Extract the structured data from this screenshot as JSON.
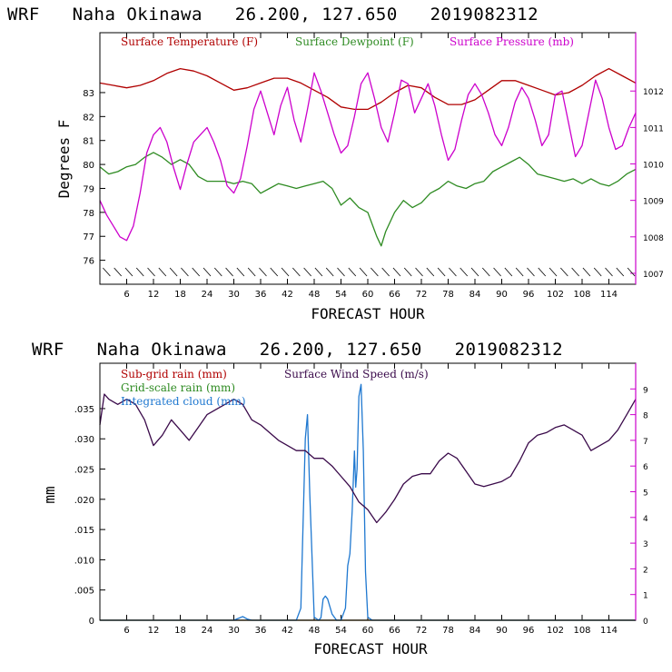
{
  "chart_data": [
    {
      "type": "line",
      "title": "WRF   Naha Okinawa   26.200, 127.650   2019082312",
      "xlabel": "FORECAST HOUR",
      "ylabel": "Degrees F",
      "xlim": [
        0,
        120
      ],
      "ylim": [
        75,
        85.5
      ],
      "ylim_right": [
        1006.7,
        1013.6
      ],
      "x_ticks": [
        6,
        12,
        18,
        24,
        30,
        36,
        42,
        48,
        54,
        60,
        66,
        72,
        78,
        84,
        90,
        96,
        102,
        108,
        114
      ],
      "x_tick_labels": [
        "6",
        "12",
        "18",
        "24",
        "30",
        "36",
        "42",
        "48",
        "54",
        "60",
        "66",
        "72",
        "78",
        "84",
        "90",
        "96",
        "102",
        "108",
        "114"
      ],
      "y_ticks": [
        76,
        77,
        78,
        79,
        80,
        81,
        82,
        83
      ],
      "y_tick_labels": [
        "76",
        "77",
        "78",
        "79",
        "80",
        "81",
        "82",
        "83"
      ],
      "y_right_ticks": [
        1007,
        1008,
        1009,
        1010,
        1011,
        1012
      ],
      "y_right_tick_labels": [
        "1007",
        "1008",
        "1009",
        "1010",
        "1011",
        "1012"
      ],
      "colors": {
        "temperature": "#b00000",
        "dewpoint": "#2e8b22",
        "pressure": "#cc00cc",
        "frame_right": "#cc00cc"
      },
      "wind_barbs": "present along bottom",
      "series": [
        {
          "name": "Surface Temperature (F)",
          "axis": "left",
          "x": [
            0,
            3,
            6,
            9,
            12,
            15,
            18,
            21,
            24,
            27,
            30,
            33,
            36,
            39,
            42,
            45,
            48,
            51,
            54,
            57,
            60,
            63,
            66,
            69,
            72,
            75,
            78,
            81,
            84,
            87,
            90,
            93,
            96,
            99,
            102,
            105,
            108,
            111,
            114,
            117,
            120
          ],
          "values": [
            83.4,
            83.3,
            83.2,
            83.3,
            83.5,
            83.8,
            84.0,
            83.9,
            83.7,
            83.4,
            83.1,
            83.2,
            83.4,
            83.6,
            83.6,
            83.4,
            83.1,
            82.8,
            82.4,
            82.3,
            82.3,
            82.6,
            83.0,
            83.3,
            83.2,
            82.8,
            82.5,
            82.5,
            82.7,
            83.1,
            83.5,
            83.5,
            83.3,
            83.1,
            82.9,
            83.0,
            83.3,
            83.7,
            84.0,
            83.7,
            83.4
          ]
        },
        {
          "name": "Surface Dewpoint (F)",
          "axis": "left",
          "x": [
            0,
            2,
            4,
            6,
            8,
            10,
            12,
            14,
            16,
            18,
            20,
            22,
            24,
            26,
            28,
            30,
            32,
            34,
            36,
            38,
            40,
            42,
            44,
            46,
            48,
            50,
            52,
            54,
            56,
            58,
            60,
            62,
            63,
            64,
            66,
            68,
            70,
            72,
            74,
            76,
            78,
            80,
            82,
            84,
            86,
            88,
            90,
            92,
            94,
            96,
            98,
            100,
            102,
            104,
            106,
            108,
            110,
            112,
            114,
            116,
            118,
            120
          ],
          "values": [
            79.9,
            79.6,
            79.7,
            79.9,
            80.0,
            80.3,
            80.5,
            80.3,
            80.0,
            80.2,
            80.0,
            79.5,
            79.3,
            79.3,
            79.3,
            79.2,
            79.3,
            79.2,
            78.8,
            79.0,
            79.2,
            79.1,
            79.0,
            79.1,
            79.2,
            79.3,
            79.0,
            78.3,
            78.6,
            78.2,
            78.0,
            77.0,
            76.6,
            77.2,
            78.0,
            78.5,
            78.2,
            78.4,
            78.8,
            79.0,
            79.3,
            79.1,
            79.0,
            79.2,
            79.3,
            79.7,
            79.9,
            80.1,
            80.3,
            80.0,
            79.6,
            79.5,
            79.4,
            79.3,
            79.4,
            79.2,
            79.4,
            79.2,
            79.1,
            79.3,
            79.6,
            79.8
          ]
        },
        {
          "name": "Surface Pressure (mb)",
          "axis": "right",
          "x": [
            0,
            1.5,
            3,
            4.5,
            6,
            7.5,
            9,
            10.5,
            12,
            13.5,
            15,
            16.5,
            18,
            19.5,
            21,
            22.5,
            24,
            25.5,
            27,
            28.5,
            30,
            31.5,
            33,
            34.5,
            36,
            37.5,
            39,
            40.5,
            42,
            43.5,
            45,
            46.5,
            48,
            49.5,
            51,
            52.5,
            54,
            55.5,
            57,
            58.5,
            60,
            61.5,
            63,
            64.5,
            66,
            67.5,
            69,
            70.5,
            72,
            73.5,
            75,
            76.5,
            78,
            79.5,
            81,
            82.5,
            84,
            85.5,
            87,
            88.5,
            90,
            91.5,
            93,
            94.5,
            96,
            97.5,
            99,
            100.5,
            102,
            103.5,
            105,
            106.5,
            108,
            109.5,
            111,
            112.5,
            114,
            115.5,
            117,
            118.5,
            120
          ],
          "values": [
            1009.0,
            1008.6,
            1008.3,
            1008.0,
            1007.9,
            1008.3,
            1009.2,
            1010.3,
            1010.8,
            1011.0,
            1010.6,
            1009.9,
            1009.3,
            1010.0,
            1010.6,
            1010.8,
            1011.0,
            1010.6,
            1010.1,
            1009.4,
            1009.2,
            1009.6,
            1010.5,
            1011.5,
            1012.0,
            1011.4,
            1010.8,
            1011.6,
            1012.1,
            1011.2,
            1010.6,
            1011.5,
            1012.5,
            1012.0,
            1011.4,
            1010.8,
            1010.3,
            1010.5,
            1011.3,
            1012.2,
            1012.5,
            1011.8,
            1011.0,
            1010.6,
            1011.4,
            1012.3,
            1012.2,
            1011.4,
            1011.8,
            1012.2,
            1011.6,
            1010.8,
            1010.1,
            1010.4,
            1011.2,
            1011.9,
            1012.2,
            1011.9,
            1011.4,
            1010.8,
            1010.5,
            1011.0,
            1011.7,
            1012.1,
            1011.8,
            1011.2,
            1010.5,
            1010.8,
            1011.9,
            1012.0,
            1011.1,
            1010.2,
            1010.5,
            1011.4,
            1012.3,
            1011.8,
            1011.0,
            1010.4,
            1010.5,
            1011.0,
            1011.4
          ]
        }
      ]
    },
    {
      "type": "line",
      "title": "WRF   Naha Okinawa   26.200, 127.650   2019082312",
      "xlabel": "FORECAST HOUR",
      "ylabel": "mm",
      "xlim": [
        0,
        120
      ],
      "ylim": [
        0,
        0.0425
      ],
      "ylim_right": [
        0,
        10
      ],
      "x_ticks": [
        6,
        12,
        18,
        24,
        30,
        36,
        42,
        48,
        54,
        60,
        66,
        72,
        78,
        84,
        90,
        96,
        102,
        108,
        114
      ],
      "x_tick_labels": [
        "6",
        "12",
        "18",
        "24",
        "30",
        "36",
        "42",
        "48",
        "54",
        "60",
        "66",
        "72",
        "78",
        "84",
        "90",
        "96",
        "102",
        "108",
        "114"
      ],
      "y_ticks": [
        0,
        0.005,
        0.01,
        0.015,
        0.02,
        0.025,
        0.03,
        0.035
      ],
      "y_tick_labels": [
        "0",
        ".005",
        ".010",
        ".015",
        ".020",
        ".025",
        ".030",
        ".035"
      ],
      "y_right_ticks": [
        0,
        1,
        2,
        3,
        4,
        5,
        6,
        7,
        8,
        9
      ],
      "y_right_tick_labels": [
        "0",
        "1",
        "2",
        "3",
        "4",
        "5",
        "6",
        "7",
        "8",
        "9"
      ],
      "colors": {
        "subgrid": "#b00000",
        "gridscale": "#2e8b22",
        "cloud": "#1f78d0",
        "wind": "#3a0a4a",
        "frame_right": "#cc00cc"
      },
      "series": [
        {
          "name": "Sub-grid rain (mm)",
          "axis": "left",
          "x": [
            0,
            120
          ],
          "values": [
            0,
            0
          ]
        },
        {
          "name": "Grid-scale rain (mm)",
          "axis": "left",
          "x": [
            0,
            120
          ],
          "values": [
            0,
            0
          ]
        },
        {
          "name": "Integrated cloud (mm)",
          "axis": "left",
          "x": [
            0,
            30,
            31,
            32,
            33,
            34,
            44,
            45,
            46,
            46.5,
            47,
            48,
            49,
            49.5,
            50,
            50.5,
            51,
            52,
            53,
            54,
            55,
            55.5,
            56,
            56.5,
            57,
            57.3,
            57.6,
            58,
            58.5,
            59,
            59.5,
            60,
            61,
            120
          ],
          "values": [
            0,
            0,
            0.0003,
            0.0006,
            0.0002,
            0,
            0,
            0.002,
            0.03,
            0.034,
            0.021,
            0.0005,
            0,
            0.0004,
            0.0035,
            0.004,
            0.0035,
            0.001,
            0,
            0,
            0.002,
            0.009,
            0.011,
            0.018,
            0.028,
            0.022,
            0.025,
            0.037,
            0.039,
            0.028,
            0.008,
            0.0005,
            0,
            0
          ]
        },
        {
          "name": "Surface Wind Speed (m/s)",
          "axis": "right",
          "x": [
            0,
            1,
            2,
            4,
            6,
            8,
            10,
            12,
            14,
            16,
            18,
            20,
            22,
            24,
            26,
            28,
            30,
            32,
            34,
            36,
            38,
            40,
            42,
            44,
            46,
            48,
            50,
            52,
            54,
            56,
            58,
            60,
            62,
            64,
            66,
            68,
            70,
            72,
            74,
            76,
            78,
            80,
            82,
            84,
            86,
            88,
            90,
            92,
            94,
            96,
            98,
            100,
            102,
            104,
            106,
            108,
            110,
            112,
            114,
            116,
            118,
            120
          ],
          "values": [
            7.6,
            8.8,
            8.6,
            8.4,
            8.6,
            8.4,
            7.8,
            6.8,
            7.2,
            7.8,
            7.4,
            7.0,
            7.5,
            8.0,
            8.2,
            8.4,
            8.6,
            8.4,
            7.8,
            7.6,
            7.3,
            7.0,
            6.8,
            6.6,
            6.6,
            6.3,
            6.3,
            6.0,
            5.6,
            5.2,
            4.6,
            4.3,
            3.8,
            4.2,
            4.7,
            5.3,
            5.6,
            5.7,
            5.7,
            6.2,
            6.5,
            6.3,
            5.8,
            5.3,
            5.2,
            5.3,
            5.4,
            5.6,
            6.2,
            6.9,
            7.2,
            7.3,
            7.5,
            7.6,
            7.4,
            7.2,
            6.6,
            6.8,
            7.0,
            7.4,
            8.0,
            8.6
          ]
        }
      ]
    }
  ]
}
